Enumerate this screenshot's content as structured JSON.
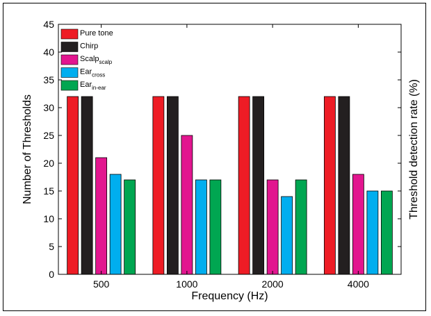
{
  "chart_data": {
    "type": "bar",
    "categories": [
      "500",
      "1000",
      "2000",
      "4000"
    ],
    "series": [
      {
        "name": "Pure tone",
        "name_main": "Pure tone",
        "name_sub": "",
        "color": "#ee1c25",
        "values": [
          32,
          32,
          32,
          32
        ]
      },
      {
        "name": "Chirp",
        "name_main": "Chirp",
        "name_sub": "",
        "color": "#231f20",
        "values": [
          32,
          32,
          32,
          32
        ]
      },
      {
        "name": "Scalpscalp",
        "name_main": "Scalp",
        "name_sub": "scalp",
        "color": "#e2168f",
        "values": [
          21,
          25,
          17,
          18
        ]
      },
      {
        "name": "Earcross",
        "name_main": "Ear",
        "name_sub": "cross",
        "color": "#00aeef",
        "values": [
          18,
          17,
          14,
          15
        ]
      },
      {
        "name": "Earin-ear",
        "name_main": "Ear",
        "name_sub": "in-ear",
        "color": "#00a651",
        "values": [
          17,
          17,
          17,
          15
        ]
      }
    ],
    "yticks": [
      0,
      5,
      10,
      15,
      20,
      25,
      30,
      35,
      40,
      45
    ],
    "ylim": [
      0,
      45
    ],
    "xlabel": "Frequency (Hz)",
    "ylabel": "Number of Thresholds",
    "ylabel_right": "Threshold detection rate (%)",
    "grid": false,
    "legend": "top-left"
  }
}
